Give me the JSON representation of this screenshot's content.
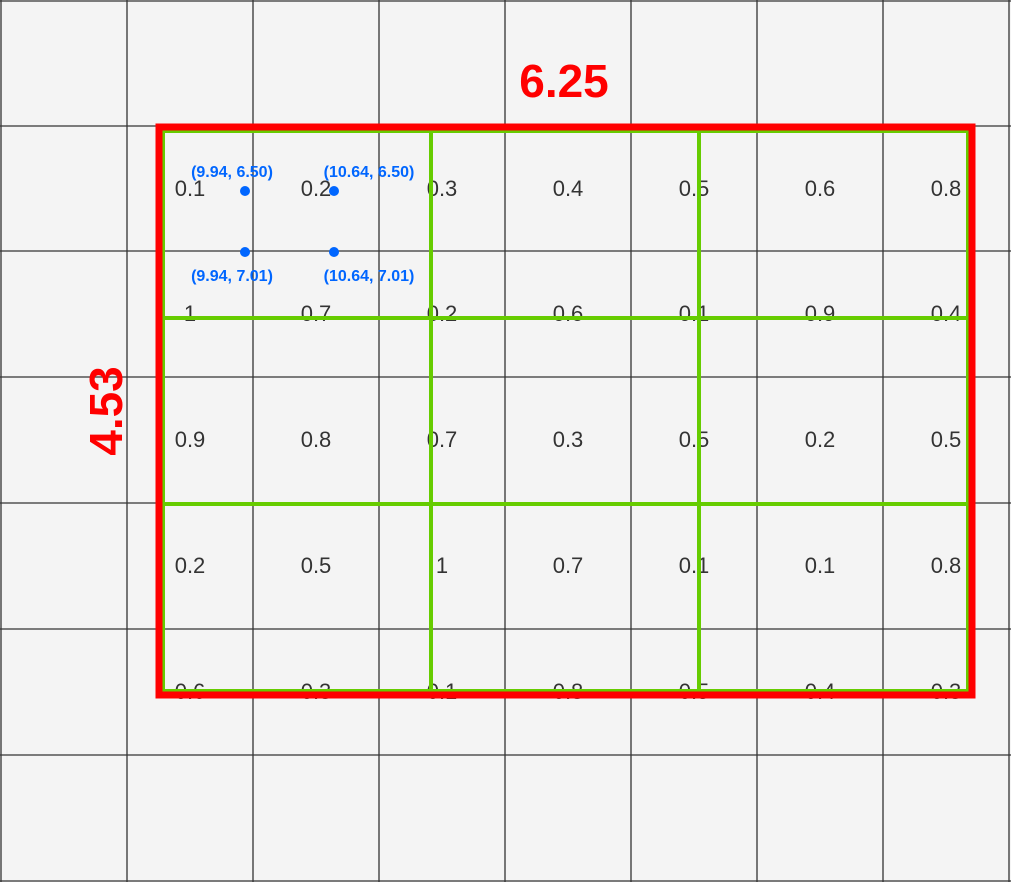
{
  "diagram": {
    "colors": {
      "background": "#f4f4f4",
      "grid_line": "#333333",
      "outer_rect": "#ff0000",
      "inner_grid": "#66cc00",
      "points": "#0066ff",
      "cell_text": "#333333"
    },
    "width_label": "6.25",
    "height_label": "4.53",
    "cell_values": [
      [
        "0.1",
        "0.2",
        "0.3",
        "0.4",
        "0.5",
        "0.6",
        "0.8"
      ],
      [
        "1",
        "0.7",
        "0.2",
        "0.6",
        "0.1",
        "0.9",
        "0.4"
      ],
      [
        "0.9",
        "0.8",
        "0.7",
        "0.3",
        "0.5",
        "0.2",
        "0.5"
      ],
      [
        "0.2",
        "0.5",
        "1",
        "0.7",
        "0.1",
        "0.1",
        "0.8"
      ],
      [
        "0.6",
        "0.3",
        "0.1",
        "0.8",
        "0.5",
        "0.4",
        "0.3"
      ]
    ],
    "points": [
      {
        "label": "(9.94, 6.50)"
      },
      {
        "label": "(10.64, 6.50)"
      },
      {
        "label": "(9.94, 7.01)"
      },
      {
        "label": "(10.64, 7.01)"
      }
    ]
  }
}
